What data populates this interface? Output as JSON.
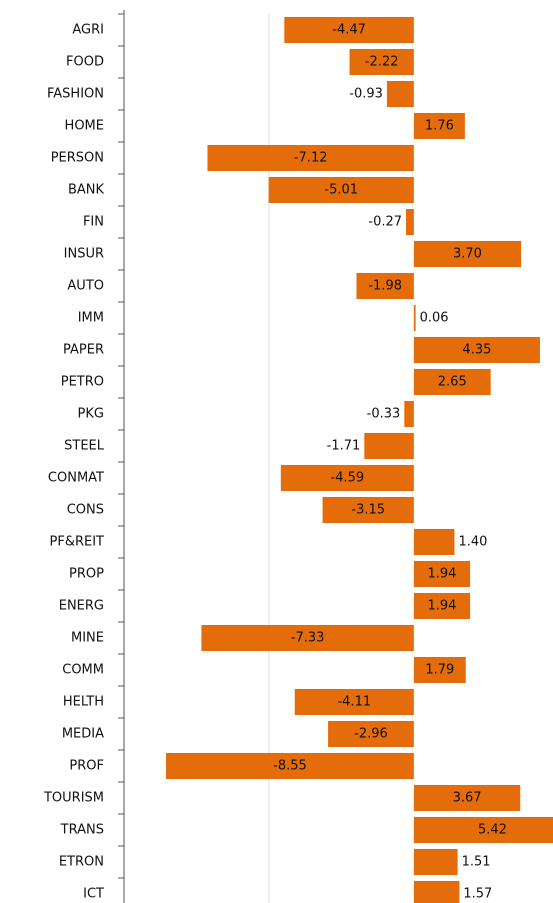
{
  "chart_data": {
    "type": "bar",
    "orientation": "horizontal",
    "categories": [
      "AGRI",
      "FOOD",
      "FASHION",
      "HOME",
      "PERSON",
      "BANK",
      "FIN",
      "INSUR",
      "AUTO",
      "IMM",
      "PAPER",
      "PETRO",
      "PKG",
      "STEEL",
      "CONMAT",
      "CONS",
      "PF&REIT",
      "PROP",
      "ENERG",
      "MINE",
      "COMM",
      "HELTH",
      "MEDIA",
      "PROF",
      "TOURISM",
      "TRANS",
      "ETRON",
      "ICT"
    ],
    "values": [
      -4.47,
      -2.22,
      -0.93,
      1.76,
      -7.12,
      -5.01,
      -0.27,
      3.7,
      -1.98,
      0.06,
      4.35,
      2.65,
      -0.33,
      -1.71,
      -4.59,
      -3.15,
      1.4,
      1.94,
      1.94,
      -7.33,
      1.79,
      -4.11,
      -2.96,
      -8.55,
      3.67,
      5.42,
      1.51,
      1.57
    ],
    "value_labels": [
      "-4.47",
      "-2.22",
      "-0.93",
      "1.76",
      "-7.12",
      "-5.01",
      "-0.27",
      "3.70",
      "-1.98",
      "0.06",
      "4.35",
      "2.65",
      "-0.33",
      "-1.71",
      "-4.59",
      "-3.15",
      "1.40",
      "1.94",
      "1.94",
      "-7.33",
      "1.79",
      "-4.11",
      "-2.96",
      "-8.55",
      "3.67",
      "5.42",
      "1.51",
      "1.57"
    ],
    "color": "#e46c0a",
    "xlim": [
      -10,
      4.8
    ],
    "xticks": [
      -5
    ],
    "grid": true
  }
}
